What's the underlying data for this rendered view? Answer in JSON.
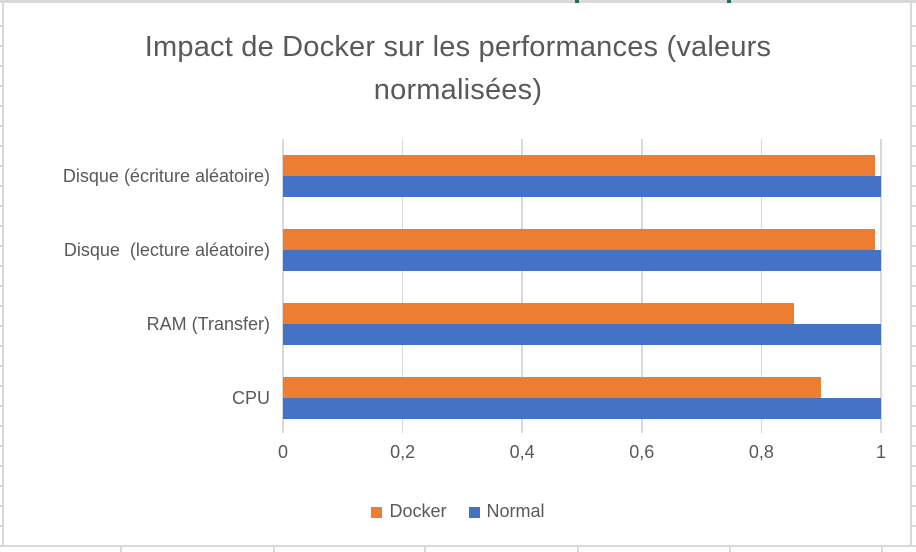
{
  "chart_data": {
    "type": "bar",
    "orientation": "horizontal",
    "title": "Impact de Docker sur les performances (valeurs normalisées)",
    "title_lines": [
      "Impact de Docker sur les performances (valeurs",
      "normalisées)"
    ],
    "categories": [
      "Disque (écriture aléatoire)",
      "Disque  (lecture aléatoire)",
      "RAM (Transfer)",
      "CPU"
    ],
    "series": [
      {
        "name": "Docker",
        "color": "#ED7D31",
        "values": [
          0.99,
          0.99,
          0.855,
          0.9
        ]
      },
      {
        "name": "Normal",
        "color": "#4472C4",
        "values": [
          1.0,
          1.0,
          1.0,
          1.0
        ]
      }
    ],
    "xlim": [
      0,
      1
    ],
    "xticks": [
      0,
      0.2,
      0.4,
      0.6,
      0.8,
      1
    ],
    "xtick_labels": [
      "0",
      "0,2",
      "0,4",
      "0,6",
      "0,8",
      "1"
    ],
    "grid": "vertical-major-only",
    "legend_position": "bottom",
    "legend": [
      "Docker",
      "Normal"
    ]
  },
  "styles": {
    "text_color": "#595959",
    "gridline_color": "#D9D9D9",
    "border_color": "#D9D9D9",
    "green_accent": "#217346",
    "background": "#FFFFFF"
  }
}
